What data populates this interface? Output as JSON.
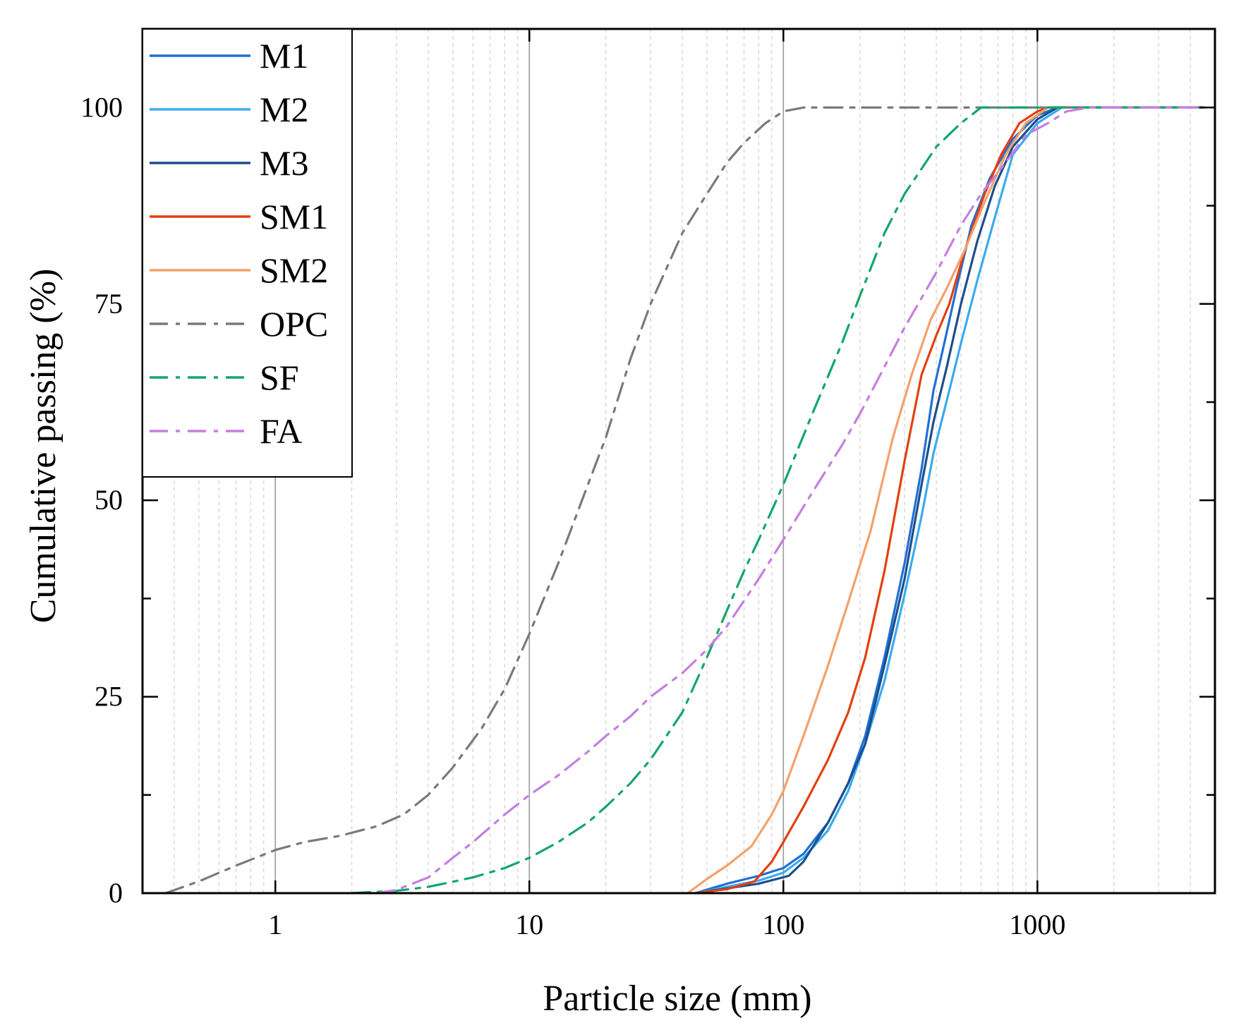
{
  "chart_data": {
    "type": "line",
    "title": "",
    "xlabel": "Particle size (mm)",
    "ylabel": "Cumulative passing (%)",
    "xscale": "log",
    "xlim": [
      0.3,
      5000
    ],
    "ylim": [
      0,
      110
    ],
    "xticks": [
      {
        "value": 1,
        "label": "1"
      },
      {
        "value": 10,
        "label": "10"
      },
      {
        "value": 100,
        "label": "100"
      },
      {
        "value": 1000,
        "label": "1000"
      }
    ],
    "yticks": [
      {
        "value": 0,
        "label": "0"
      },
      {
        "value": 25,
        "label": "25"
      },
      {
        "value": 50,
        "label": "50"
      },
      {
        "value": 75,
        "label": "75"
      },
      {
        "value": 100,
        "label": "100"
      }
    ],
    "grid": "vertical major (solid) and minor (dashed) on log x-axis",
    "legend_position": "top-left",
    "series": [
      {
        "name": "M1",
        "color": "#1f6fd6",
        "dash": "solid",
        "points": [
          [
            45,
            0
          ],
          [
            60,
            1.2
          ],
          [
            80,
            2.2
          ],
          [
            100,
            3.2
          ],
          [
            120,
            5
          ],
          [
            150,
            9
          ],
          [
            180,
            14
          ],
          [
            210,
            20
          ],
          [
            250,
            30
          ],
          [
            300,
            42
          ],
          [
            350,
            54
          ],
          [
            390,
            64
          ],
          [
            430,
            70
          ],
          [
            480,
            77
          ],
          [
            550,
            85
          ],
          [
            650,
            91
          ],
          [
            800,
            96
          ],
          [
            1000,
            99
          ],
          [
            1200,
            100
          ],
          [
            4500,
            100
          ]
        ]
      },
      {
        "name": "M2",
        "color": "#3aaaf0",
        "dash": "solid",
        "points": [
          [
            45,
            0
          ],
          [
            60,
            0.8
          ],
          [
            80,
            1.6
          ],
          [
            100,
            2.6
          ],
          [
            120,
            4.5
          ],
          [
            150,
            8
          ],
          [
            180,
            13
          ],
          [
            210,
            19
          ],
          [
            250,
            27
          ],
          [
            300,
            38
          ],
          [
            350,
            48
          ],
          [
            390,
            56
          ],
          [
            450,
            64
          ],
          [
            500,
            70
          ],
          [
            580,
            78
          ],
          [
            680,
            86
          ],
          [
            800,
            94
          ],
          [
            1000,
            98
          ],
          [
            1250,
            100
          ],
          [
            4500,
            100
          ]
        ]
      },
      {
        "name": "M3",
        "color": "#1b4f8c",
        "dash": "solid",
        "points": [
          [
            45,
            0
          ],
          [
            60,
            0.6
          ],
          [
            80,
            1.2
          ],
          [
            105,
            2.2
          ],
          [
            120,
            4
          ],
          [
            150,
            9
          ],
          [
            180,
            14
          ],
          [
            210,
            19
          ],
          [
            250,
            29
          ],
          [
            300,
            40
          ],
          [
            350,
            52
          ],
          [
            390,
            60
          ],
          [
            440,
            67
          ],
          [
            500,
            75
          ],
          [
            580,
            83
          ],
          [
            680,
            90
          ],
          [
            800,
            95
          ],
          [
            1000,
            98.5
          ],
          [
            1200,
            100
          ],
          [
            4500,
            100
          ]
        ]
      },
      {
        "name": "SM1",
        "color": "#e2400f",
        "dash": "solid",
        "points": [
          [
            45,
            0
          ],
          [
            60,
            0.5
          ],
          [
            77,
            1.5
          ],
          [
            90,
            4
          ],
          [
            100,
            6.5
          ],
          [
            120,
            11
          ],
          [
            150,
            17
          ],
          [
            180,
            23
          ],
          [
            210,
            30
          ],
          [
            250,
            41
          ],
          [
            300,
            55
          ],
          [
            350,
            66
          ],
          [
            400,
            71
          ],
          [
            450,
            75
          ],
          [
            520,
            82
          ],
          [
            620,
            89
          ],
          [
            720,
            94
          ],
          [
            850,
            98
          ],
          [
            1000,
            99.5
          ],
          [
            1100,
            100
          ],
          [
            4500,
            100
          ]
        ]
      },
      {
        "name": "SM2",
        "color": "#f5a06a",
        "dash": "solid",
        "points": [
          [
            42,
            0
          ],
          [
            50,
            1.8
          ],
          [
            60,
            3.5
          ],
          [
            75,
            6
          ],
          [
            90,
            10
          ],
          [
            100,
            13
          ],
          [
            120,
            20
          ],
          [
            150,
            29
          ],
          [
            180,
            37
          ],
          [
            220,
            46
          ],
          [
            270,
            58
          ],
          [
            320,
            66
          ],
          [
            380,
            73
          ],
          [
            440,
            77
          ],
          [
            520,
            82
          ],
          [
            620,
            88
          ],
          [
            750,
            94
          ],
          [
            900,
            98
          ],
          [
            1100,
            100
          ],
          [
            4500,
            100
          ]
        ]
      },
      {
        "name": "OPC",
        "color": "#7a7a7a",
        "dash": "26 11 6 11",
        "points": [
          [
            0.37,
            0
          ],
          [
            0.5,
            1.5
          ],
          [
            0.7,
            3.5
          ],
          [
            1,
            5.5
          ],
          [
            1.3,
            6.5
          ],
          [
            1.8,
            7.3
          ],
          [
            2.5,
            8.5
          ],
          [
            3.2,
            10
          ],
          [
            4,
            12.5
          ],
          [
            5,
            16
          ],
          [
            6.5,
            21
          ],
          [
            8,
            26
          ],
          [
            10,
            33
          ],
          [
            13,
            42
          ],
          [
            17,
            52
          ],
          [
            20,
            58
          ],
          [
            25,
            68
          ],
          [
            30,
            75
          ],
          [
            40,
            84
          ],
          [
            50,
            89
          ],
          [
            60,
            93
          ],
          [
            70,
            95.5
          ],
          [
            85,
            98
          ],
          [
            100,
            99.5
          ],
          [
            120,
            100
          ],
          [
            1000,
            100
          ],
          [
            4500,
            100
          ]
        ]
      },
      {
        "name": "SF",
        "color": "#13a66b",
        "dash": "26 11 6 11",
        "points": [
          [
            2,
            0
          ],
          [
            3,
            0.3
          ],
          [
            4,
            0.8
          ],
          [
            6,
            2
          ],
          [
            8,
            3.2
          ],
          [
            10,
            4.5
          ],
          [
            13,
            6.5
          ],
          [
            17,
            9
          ],
          [
            20,
            11
          ],
          [
            25,
            14
          ],
          [
            30,
            17
          ],
          [
            40,
            23
          ],
          [
            50,
            30
          ],
          [
            60,
            36
          ],
          [
            70,
            41
          ],
          [
            80,
            45
          ],
          [
            100,
            52
          ],
          [
            130,
            61
          ],
          [
            170,
            70
          ],
          [
            200,
            76
          ],
          [
            250,
            84
          ],
          [
            300,
            89
          ],
          [
            400,
            95
          ],
          [
            500,
            98
          ],
          [
            600,
            100
          ],
          [
            4500,
            100
          ]
        ]
      },
      {
        "name": "FA",
        "color": "#c57ee0",
        "dash": "26 11 6 11",
        "points": [
          [
            2.5,
            0
          ],
          [
            3,
            0.4
          ],
          [
            4,
            2
          ],
          [
            5,
            4.5
          ],
          [
            6,
            6.5
          ],
          [
            8,
            10
          ],
          [
            10,
            12.5
          ],
          [
            13,
            15
          ],
          [
            17,
            18
          ],
          [
            20,
            20
          ],
          [
            25,
            22.5
          ],
          [
            30,
            25
          ],
          [
            40,
            28
          ],
          [
            50,
            31
          ],
          [
            60,
            34
          ],
          [
            80,
            40
          ],
          [
            100,
            45
          ],
          [
            130,
            51
          ],
          [
            170,
            57
          ],
          [
            200,
            61
          ],
          [
            250,
            67
          ],
          [
            300,
            72
          ],
          [
            400,
            79
          ],
          [
            500,
            85
          ],
          [
            600,
            89
          ],
          [
            750,
            93
          ],
          [
            900,
            96.5
          ],
          [
            1100,
            98
          ],
          [
            1300,
            99.5
          ],
          [
            1600,
            100
          ],
          [
            4500,
            100
          ]
        ]
      }
    ]
  }
}
